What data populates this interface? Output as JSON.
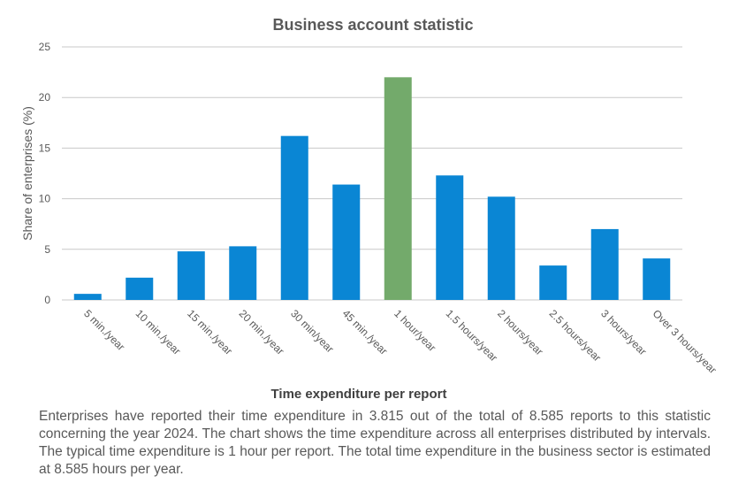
{
  "chart_data": {
    "type": "bar",
    "title": "Business account statistic",
    "xlabel": "Time expenditure per report",
    "ylabel": "Share of enterprises  (%)",
    "ylim": [
      0,
      25
    ],
    "yticks": [
      0,
      5,
      10,
      15,
      20,
      25
    ],
    "grid": true,
    "categories": [
      "5 min./year",
      "10 min./year",
      "15 min./year",
      "20 min./year",
      "30 min/year",
      "45 min./year",
      "1 hour/year",
      "1.5 hours/year",
      "2 hours/year",
      "2.5 hours/year",
      "3 hours/year",
      "Over 3 hours/year"
    ],
    "values": [
      0.6,
      2.2,
      4.8,
      5.3,
      16.2,
      11.4,
      22.0,
      12.3,
      10.2,
      3.4,
      7.0,
      4.1
    ],
    "highlight_index": 6,
    "colors": {
      "bar": "#0a86d4",
      "highlight": "#73aa6b",
      "grid": "#c8c8c8",
      "text": "#595959",
      "title": "#595959"
    }
  },
  "caption": "Enterprises have reported their time expenditure in 3.815 out of the total of 8.585 reports to this statistic concerning the year 2024. The chart shows the time expenditure across all enterprises distributed by intervals. The typical time expenditure is 1 hour per report. The total time expenditure in the business sector is estimated at 8.585 hours per year."
}
